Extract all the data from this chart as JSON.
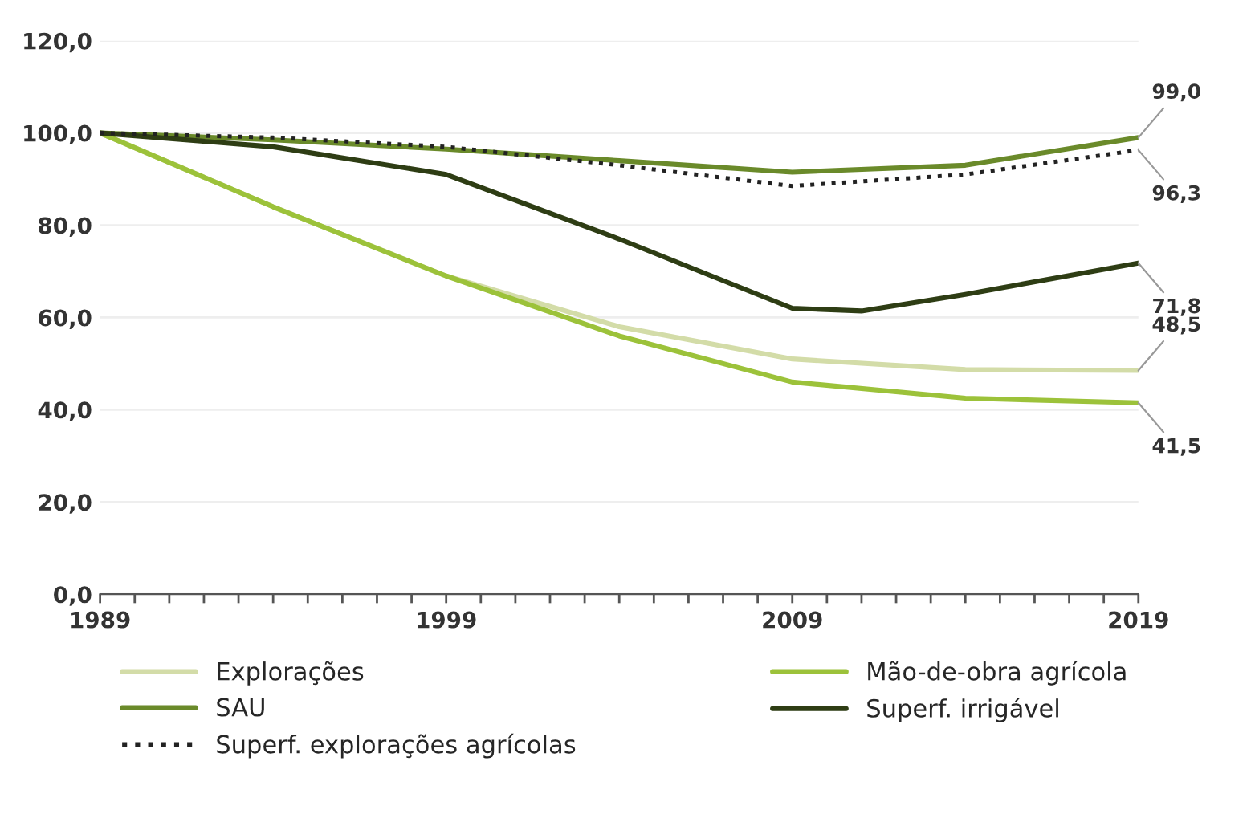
{
  "chart_data": {
    "type": "line",
    "x": [
      1989,
      1994,
      1999,
      2004,
      2009,
      2014,
      2019
    ],
    "series": [
      {
        "name": "Explorações",
        "color": "#d3dca8",
        "values": [
          100,
          84,
          69,
          58,
          51,
          48.7,
          48.5
        ],
        "value_labels": [
          null,
          null,
          null,
          null,
          null,
          null,
          "48,5"
        ]
      },
      {
        "name": "Mão-de-obra agrícola",
        "color": "#9cc23a",
        "values": [
          100,
          84,
          69,
          56,
          46,
          42.5,
          41.5
        ],
        "value_labels": [
          null,
          null,
          null,
          null,
          null,
          null,
          "41,5"
        ]
      },
      {
        "name": "SAU",
        "color": "#6a8a2a",
        "values": [
          100,
          98.5,
          96.5,
          94,
          91.5,
          93,
          99.0
        ],
        "value_labels": [
          null,
          null,
          null,
          null,
          null,
          null,
          "99,0"
        ]
      },
      {
        "name": "Superf. irrigável",
        "color": "#2e3d14",
        "x": [
          1989,
          1994,
          1999,
          2004,
          2009,
          2011,
          2014,
          2019
        ],
        "values": [
          100,
          97,
          91,
          77,
          62,
          61.4,
          65,
          71.8
        ],
        "value_labels": [
          null,
          null,
          null,
          null,
          null,
          null,
          null,
          "71,8"
        ]
      },
      {
        "name": "Superf. explorações agrícolas",
        "color": "#222222",
        "line_style": "dotted",
        "values": [
          100,
          99,
          97,
          93,
          88.5,
          91,
          96.3
        ],
        "value_labels": [
          null,
          null,
          null,
          null,
          null,
          null,
          "96,3"
        ]
      }
    ],
    "xlim": [
      1989,
      2019
    ],
    "xticks": [
      1989,
      {
        "value": 1990,
        "label": null
      },
      {
        "value": 1991,
        "label": null
      },
      {
        "value": 1992,
        "label": null
      },
      {
        "value": 1993,
        "label": null
      },
      {
        "value": 1994,
        "label": null
      },
      {
        "value": 1995,
        "label": null
      },
      {
        "value": 1996,
        "label": null
      },
      {
        "value": 1997,
        "label": null
      },
      {
        "value": 1998,
        "label": null
      },
      1999,
      {
        "value": 2000,
        "label": null
      },
      {
        "value": 2001,
        "label": null
      },
      {
        "value": 2002,
        "label": null
      },
      {
        "value": 2003,
        "label": null
      },
      {
        "value": 2004,
        "label": null
      },
      {
        "value": 2005,
        "label": null
      },
      {
        "value": 2006,
        "label": null
      },
      {
        "value": 2007,
        "label": null
      },
      {
        "value": 2008,
        "label": null
      },
      2009,
      {
        "value": 2010,
        "label": null
      },
      {
        "value": 2011,
        "label": null
      },
      {
        "value": 2012,
        "label": null
      },
      {
        "value": 2013,
        "label": null
      },
      {
        "value": 2014,
        "label": null
      },
      {
        "value": 2015,
        "label": null
      },
      {
        "value": 2016,
        "label": null
      },
      {
        "value": 2017,
        "label": null
      },
      {
        "value": 2018,
        "label": null
      },
      2019
    ],
    "ylim": [
      0,
      120
    ],
    "yticks": [
      {
        "value": 0,
        "label": "0,0"
      },
      {
        "value": 20,
        "label": "20,0"
      },
      {
        "value": 40,
        "label": "40,0"
      },
      {
        "value": 60,
        "label": "60,0"
      },
      {
        "value": 80,
        "label": "80,0"
      },
      {
        "value": 100,
        "label": "100,0"
      },
      {
        "value": 120,
        "label": "120,0"
      }
    ],
    "grid": "y",
    "legend": "bottom",
    "marker": "none",
    "line_style": "solid"
  }
}
